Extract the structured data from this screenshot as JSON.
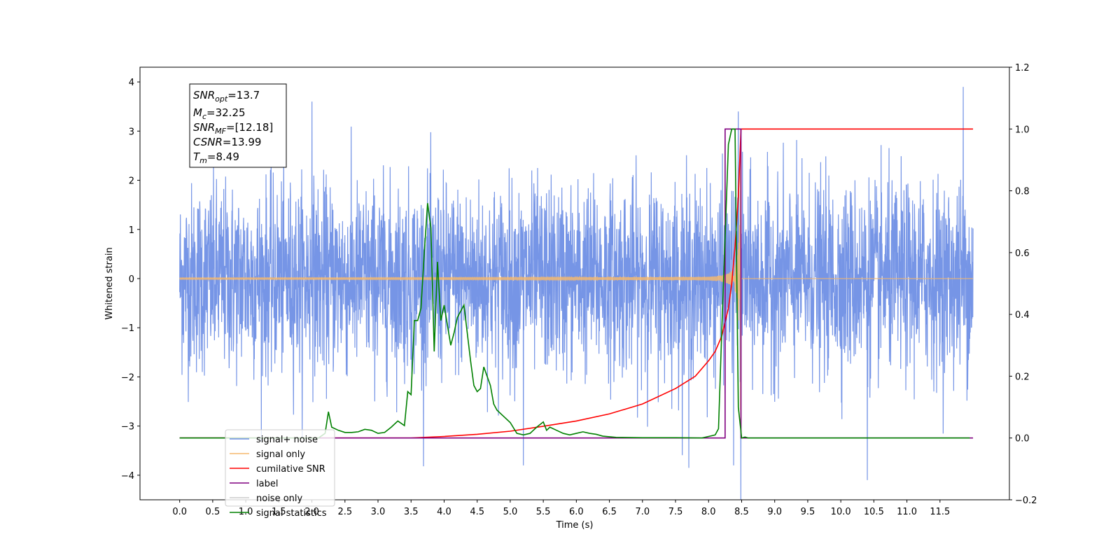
{
  "chart_data": {
    "type": "line",
    "xlabel": "Time (s)",
    "ylabel": "Whitened strain",
    "xlim": [
      -0.6,
      12.55
    ],
    "ylim": [
      -4.5,
      4.3
    ],
    "ylim_right": [
      -0.2,
      1.2
    ],
    "grid": false,
    "legend_position": "lower-left",
    "x_ticks": [
      0.0,
      0.5,
      1.0,
      1.5,
      2.0,
      2.5,
      3.0,
      3.5,
      4.0,
      4.5,
      5.0,
      5.5,
      6.0,
      6.5,
      7.0,
      7.5,
      8.0,
      8.5,
      9.0,
      9.5,
      10.0,
      10.5,
      11.0,
      11.5
    ],
    "x_tick_labels": [
      "0.0",
      "0.5",
      "1.0",
      "1.5",
      "2.0",
      "2.5",
      "3.0",
      "3.5",
      "4.0",
      "4.5",
      "5.0",
      "5.5",
      "6.0",
      "6.5",
      "7.0",
      "7.5",
      "8.0",
      "8.5",
      "9.0",
      "9.5",
      "10.0",
      "10.5",
      "11.0",
      "11.5"
    ],
    "y_ticks": [
      -4,
      -3,
      -2,
      -1,
      0,
      1,
      2,
      3,
      4
    ],
    "y_tick_labels": [
      "−4",
      "−3",
      "−2",
      "−1",
      "0",
      "1",
      "2",
      "3",
      "4"
    ],
    "y_right_ticks": [
      -0.2,
      0.0,
      0.2,
      0.4,
      0.6,
      0.8,
      1.0,
      1.2
    ],
    "y_right_tick_labels": [
      "−0.2",
      "0.0",
      "0.2",
      "0.4",
      "0.6",
      "0.8",
      "1.0",
      "1.2"
    ],
    "info_box": {
      "snr_opt": {
        "sym": "SNR",
        "sub": "opt",
        "value": "=13.7"
      },
      "mc": {
        "sym": "M",
        "sub": "c",
        "value": "=32.25"
      },
      "snr_mf": {
        "sym": "SNR",
        "sub": "MF",
        "value": "=[12.18]"
      },
      "csnr": {
        "sym": "CSNR",
        "value": "=13.99"
      },
      "tm": {
        "sym": "T",
        "sub": "m",
        "value": "=8.49"
      }
    },
    "series": [
      {
        "name": "signal+ noise",
        "color": "#6f8fe5",
        "axis": "left",
        "style": "dense-noise",
        "x_range": [
          0.0,
          12.0
        ],
        "amplitude_typical": 1.1,
        "notable_peaks": [
          [
            2.0,
            3.6
          ],
          [
            8.45,
            3.4
          ],
          [
            11.85,
            3.9
          ],
          [
            10.4,
            -4.1
          ],
          [
            7.7,
            -3.85
          ],
          [
            8.38,
            -3.8
          ],
          [
            5.2,
            -3.8
          ]
        ]
      },
      {
        "name": "signal only",
        "color": "#f5b86e",
        "axis": "left",
        "style": "chirp",
        "x_range": [
          0.0,
          12.0
        ],
        "merger_time": 8.49,
        "peak_amplitude": 3.45
      },
      {
        "name": "cumilative SNR",
        "color": "#ff0000",
        "axis": "right",
        "x": [
          0.0,
          3.5,
          4.0,
          4.5,
          5.0,
          5.5,
          6.0,
          6.5,
          7.0,
          7.5,
          7.8,
          8.0,
          8.1,
          8.2,
          8.3,
          8.35,
          8.4,
          8.45,
          8.49,
          9.0,
          10.0,
          11.0,
          12.0
        ],
        "y": [
          0.0,
          0.0,
          0.005,
          0.012,
          0.022,
          0.038,
          0.055,
          0.078,
          0.11,
          0.16,
          0.2,
          0.25,
          0.28,
          0.33,
          0.42,
          0.5,
          0.62,
          0.78,
          1.0,
          1.0,
          1.0,
          1.0,
          1.0
        ]
      },
      {
        "name": "label",
        "color": "#800080",
        "axis": "right",
        "x": [
          0.0,
          8.25,
          8.25,
          8.49,
          8.49,
          12.0
        ],
        "y": [
          0.0,
          0.0,
          1.0,
          1.0,
          0.0,
          0.0
        ]
      },
      {
        "name": "noise only",
        "color": "#cccccc",
        "axis": "right",
        "x": [],
        "y": []
      },
      {
        "name": "signal statistics",
        "color": "#008000",
        "axis": "right",
        "x": [
          0.0,
          2.1,
          2.2,
          2.25,
          2.3,
          2.4,
          2.5,
          2.6,
          2.7,
          2.8,
          2.9,
          3.0,
          3.1,
          3.2,
          3.3,
          3.4,
          3.45,
          3.5,
          3.55,
          3.6,
          3.65,
          3.7,
          3.75,
          3.8,
          3.85,
          3.9,
          3.95,
          4.0,
          4.1,
          4.15,
          4.2,
          4.3,
          4.4,
          4.45,
          4.5,
          4.55,
          4.6,
          4.7,
          4.75,
          4.8,
          4.9,
          5.0,
          5.1,
          5.2,
          5.3,
          5.4,
          5.5,
          5.55,
          5.6,
          5.7,
          5.8,
          5.9,
          6.0,
          6.1,
          6.2,
          6.3,
          6.4,
          6.5,
          6.6,
          7.0,
          7.5,
          7.9,
          8.0,
          8.1,
          8.15,
          8.2,
          8.3,
          8.35,
          8.4,
          8.45,
          8.5,
          8.55,
          8.6,
          9.0,
          10.0,
          11.0,
          11.95
        ],
        "y": [
          0.0,
          0.0,
          0.015,
          0.085,
          0.035,
          0.025,
          0.018,
          0.018,
          0.02,
          0.028,
          0.025,
          0.015,
          0.018,
          0.035,
          0.055,
          0.04,
          0.15,
          0.14,
          0.38,
          0.38,
          0.42,
          0.6,
          0.76,
          0.68,
          0.28,
          0.57,
          0.38,
          0.43,
          0.3,
          0.34,
          0.39,
          0.43,
          0.25,
          0.17,
          0.15,
          0.16,
          0.23,
          0.17,
          0.11,
          0.09,
          0.07,
          0.05,
          0.015,
          0.01,
          0.015,
          0.035,
          0.052,
          0.025,
          0.035,
          0.025,
          0.015,
          0.01,
          0.015,
          0.02,
          0.015,
          0.012,
          0.006,
          0.004,
          0.002,
          0.001,
          0.001,
          0.0,
          0.005,
          0.01,
          0.03,
          0.35,
          0.95,
          1.0,
          1.0,
          0.1,
          0.0,
          0.003,
          0.0,
          0.0,
          0.0,
          0.0,
          0.0
        ]
      }
    ]
  }
}
